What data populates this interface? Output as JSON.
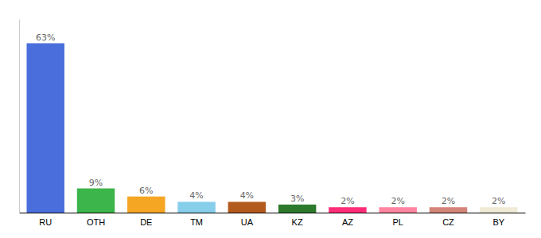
{
  "chart_data": {
    "type": "bar",
    "categories": [
      "RU",
      "OTH",
      "DE",
      "TM",
      "UA",
      "KZ",
      "AZ",
      "PL",
      "CZ",
      "BY"
    ],
    "values": [
      63,
      9,
      6,
      4,
      4,
      3,
      2,
      2,
      2,
      2
    ],
    "value_labels": [
      "63%",
      "9%",
      "6%",
      "4%",
      "4%",
      "3%",
      "2%",
      "2%",
      "2%",
      "2%"
    ],
    "colors": [
      "#4a6fdc",
      "#3cb54a",
      "#f5a623",
      "#87ceeb",
      "#b35a1f",
      "#2d7a2d",
      "#ff2d78",
      "#ff85a0",
      "#d4857a",
      "#f0ead6"
    ],
    "ylim": [
      0,
      72
    ],
    "data_labels": true,
    "tick_labels": "x",
    "grid": false
  }
}
